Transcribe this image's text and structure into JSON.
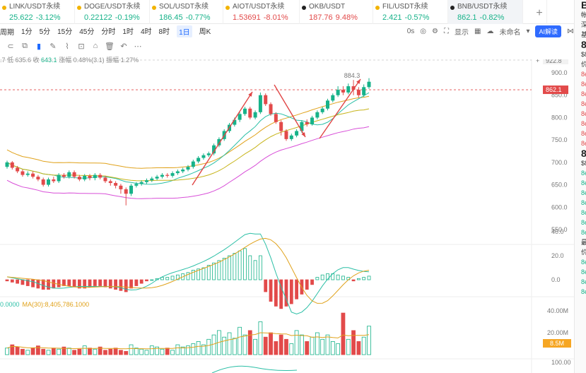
{
  "tabs": [
    {
      "name": "LINK/USDT永续",
      "price": "25.622",
      "change": "-3.12%",
      "dir": "up",
      "dot": "#f2b300"
    },
    {
      "name": "DOGE/USDT永续",
      "price": "0.22122",
      "change": "-0.19%",
      "dir": "up",
      "dot": "#f2b300"
    },
    {
      "name": "SOL/USDT永续",
      "price": "186.45",
      "change": "-0.77%",
      "dir": "up",
      "dot": "#f2b300"
    },
    {
      "name": "AIOT/USDT永续",
      "price": "1.53691",
      "change": "-8.01%",
      "dir": "down",
      "dot": "#f2b300"
    },
    {
      "name": "OKB/USDT",
      "price": "187.76",
      "change": "9.48%",
      "dir": "down",
      "dot": "#222222"
    },
    {
      "name": "FIL/USDT永续",
      "price": "2.421",
      "change": "-0.57%",
      "dir": "up",
      "dot": "#f2b300"
    },
    {
      "name": "BNB/USDT永续",
      "price": "862.1",
      "change": "-0.82%",
      "dir": "up",
      "dot": "#222222",
      "active": true
    }
  ],
  "toolbar": {
    "period_label": "周期",
    "periods": [
      "1分",
      "5分",
      "15分",
      "45分",
      "分时",
      "1时",
      "4时",
      "8时",
      "1日",
      "周K"
    ],
    "active_period": "1日",
    "zero_label": "0s",
    "display_label": "显示",
    "unnamed_label": "未命名",
    "ai_label": "AI解读"
  },
  "info": {
    "prefix": ".7 低 635.6 收 ",
    "close": "643.1",
    "change_text": " 涨幅 0.48%(3.1) 振幅 1.27%"
  },
  "price_axis": {
    "ticks": [
      "900.0",
      "850.0",
      "800.0",
      "750.0",
      "700.0",
      "650.0",
      "600.0",
      "550.0"
    ],
    "high_badge": "922.8",
    "current": "862.1",
    "peak_label": "884.3"
  },
  "macd_axis": {
    "ticks": [
      "40.0",
      "20.0",
      "0.0"
    ]
  },
  "volume": {
    "legend_prefix": "0.0000",
    "legend_ma": "MA(30):8,405,786.1000",
    "ticks": [
      "40.00M",
      "20.00M"
    ],
    "current": "8.5M"
  },
  "bottom_axis": {
    "ticks": [
      "100.00"
    ]
  },
  "right_panel": {
    "lines": [
      "B",
      "帐",
      "深",
      "基",
      "8",
      "$8",
      "价",
      "8e",
      "8e",
      "8e",
      "8e",
      "8e",
      "8e",
      "8e",
      "8e",
      "8",
      "$8",
      "8e",
      "8e",
      "8e",
      "8e",
      "8e",
      "8e",
      "8e",
      "最",
      "价",
      "8e",
      "8e",
      "8e",
      "8e"
    ]
  },
  "chart_data": {
    "type": "candlestick",
    "price_ylim": [
      520,
      930
    ],
    "candles": [
      [
        690,
        700,
        686,
        704
      ],
      [
        700,
        688,
        684,
        703
      ],
      [
        688,
        680,
        676,
        692
      ],
      [
        680,
        672,
        668,
        684
      ],
      [
        672,
        675,
        668,
        680
      ],
      [
        675,
        668,
        664,
        680
      ],
      [
        668,
        662,
        658,
        672
      ],
      [
        662,
        650,
        646,
        666
      ],
      [
        650,
        662,
        646,
        666
      ],
      [
        662,
        658,
        654,
        668
      ],
      [
        658,
        672,
        654,
        676
      ],
      [
        672,
        668,
        664,
        676
      ],
      [
        668,
        678,
        664,
        682
      ],
      [
        678,
        668,
        664,
        682
      ],
      [
        668,
        662,
        658,
        672
      ],
      [
        662,
        670,
        658,
        674
      ],
      [
        670,
        665,
        660,
        674
      ],
      [
        665,
        672,
        660,
        676
      ],
      [
        672,
        666,
        662,
        676
      ],
      [
        666,
        658,
        654,
        670
      ],
      [
        658,
        654,
        648,
        662
      ],
      [
        654,
        648,
        642,
        658
      ],
      [
        648,
        640,
        630,
        652
      ],
      [
        640,
        630,
        604,
        644
      ],
      [
        630,
        648,
        625,
        652
      ],
      [
        648,
        652,
        644,
        656
      ],
      [
        652,
        656,
        648,
        660
      ],
      [
        656,
        660,
        652,
        664
      ],
      [
        660,
        664,
        656,
        668
      ],
      [
        664,
        668,
        660,
        672
      ],
      [
        668,
        672,
        664,
        676
      ],
      [
        672,
        670,
        666,
        676
      ],
      [
        670,
        676,
        666,
        680
      ],
      [
        676,
        680,
        672,
        684
      ],
      [
        680,
        684,
        676,
        688
      ],
      [
        684,
        690,
        680,
        694
      ],
      [
        690,
        702,
        686,
        706
      ],
      [
        702,
        710,
        698,
        714
      ],
      [
        710,
        716,
        706,
        720
      ],
      [
        716,
        720,
        712,
        724
      ],
      [
        720,
        738,
        716,
        742
      ],
      [
        738,
        752,
        734,
        756
      ],
      [
        752,
        770,
        748,
        774
      ],
      [
        770,
        784,
        766,
        788
      ],
      [
        784,
        795,
        780,
        800
      ],
      [
        795,
        808,
        790,
        812
      ],
      [
        808,
        820,
        804,
        824
      ],
      [
        820,
        800,
        796,
        824
      ],
      [
        800,
        812,
        796,
        816
      ],
      [
        812,
        850,
        808,
        856
      ],
      [
        850,
        830,
        826,
        854
      ],
      [
        830,
        808,
        804,
        834
      ],
      [
        808,
        790,
        786,
        812
      ],
      [
        790,
        770,
        760,
        794
      ],
      [
        770,
        752,
        748,
        774
      ],
      [
        752,
        760,
        748,
        764
      ],
      [
        760,
        770,
        756,
        774
      ],
      [
        770,
        790,
        766,
        794
      ],
      [
        790,
        785,
        780,
        796
      ],
      [
        785,
        800,
        782,
        804
      ],
      [
        800,
        812,
        796,
        816
      ],
      [
        812,
        820,
        808,
        824
      ],
      [
        820,
        838,
        816,
        842
      ],
      [
        838,
        850,
        834,
        854
      ],
      [
        850,
        862,
        846,
        870
      ],
      [
        862,
        856,
        850,
        870
      ],
      [
        856,
        870,
        852,
        876
      ],
      [
        870,
        862,
        850,
        884
      ],
      [
        862,
        850,
        845,
        868
      ],
      [
        850,
        868,
        846,
        874
      ],
      [
        868,
        880,
        864,
        888
      ]
    ],
    "macd": [
      -1,
      -2,
      -3,
      -4,
      -5,
      -6,
      -7,
      -8,
      -8,
      -7,
      -6,
      -5,
      -5,
      -6,
      -7,
      -7,
      -6,
      -5,
      -5,
      -6,
      -7,
      -8,
      -9,
      -10,
      -7,
      -5,
      -3,
      -1,
      0,
      1,
      2,
      2,
      3,
      4,
      5,
      6,
      8,
      9,
      10,
      12,
      14,
      16,
      18,
      20,
      22,
      24,
      26,
      20,
      16,
      20,
      -10,
      -18,
      -22,
      -24,
      -22,
      -20,
      -16,
      -12,
      -8,
      -4,
      2,
      4,
      5,
      5,
      4,
      3,
      2,
      -1,
      1,
      2,
      3
    ],
    "volume": [
      6,
      9,
      7,
      5,
      4,
      6,
      8,
      5,
      4,
      6,
      5,
      7,
      6,
      4,
      5,
      8,
      6,
      5,
      7,
      4,
      5,
      6,
      4,
      3,
      9,
      6,
      5,
      4,
      8,
      7,
      5,
      6,
      4,
      9,
      7,
      8,
      10,
      12,
      9,
      14,
      18,
      22,
      16,
      20,
      15,
      25,
      18,
      22,
      14,
      30,
      16,
      20,
      12,
      18,
      14,
      10,
      22,
      18,
      12,
      16,
      20,
      14,
      18,
      12,
      10,
      38,
      14,
      22,
      12,
      16,
      26
    ],
    "y_axis_price": [
      "900.0",
      "850.0",
      "800.0",
      "750.0",
      "700.0",
      "650.0",
      "600.0",
      "550.0"
    ]
  },
  "colors": {
    "up": "#16b289",
    "down": "#e24a4a",
    "ma1": "#e0a21b",
    "ma2": "#2bbfa6",
    "ma3": "#d84fd8",
    "annot": "#e04545"
  }
}
